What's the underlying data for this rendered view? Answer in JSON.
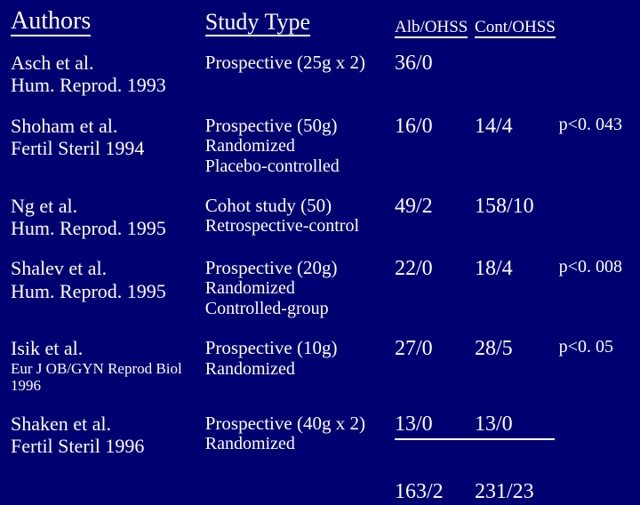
{
  "colors": {
    "background": "#000070",
    "text": "#ffffff",
    "rule": "#ffffff"
  },
  "typography": {
    "family": "Times New Roman",
    "header_large_pt": 28,
    "header_med_pt": 26,
    "header_small_pt": 19,
    "author_pt": 22,
    "study_pt": 21,
    "value_pt": 24,
    "pvalue_pt": 20
  },
  "headers": {
    "authors": "Authors",
    "study_type": "Study Type",
    "alb_ohss": "Alb/OHSS",
    "cont_ohss": "Cont/OHSS"
  },
  "rows": [
    {
      "author_line1": "Asch et al.",
      "author_line2": "Hum. Reprod. 1993",
      "study_line1": "Prospective (25g x 2)",
      "study_line2": "",
      "study_line3": "",
      "alb": "36/0",
      "cont": "",
      "p": ""
    },
    {
      "author_line1": "Shoham et al.",
      "author_line2": "Fertil Steril 1994",
      "study_line1": "Prospective (50g)",
      "study_line2": "Randomized",
      "study_line3": "Placebo-controlled",
      "alb": "16/0",
      "cont": "14/4",
      "p": "p<0. 043"
    },
    {
      "author_line1": "Ng et al.",
      "author_line2": "Hum. Reprod. 1995",
      "study_line1": "Cohot study  (50)",
      "study_line2": "Retrospective-control",
      "study_line3": "",
      "alb": "49/2",
      "cont": "158/10",
      "p": ""
    },
    {
      "author_line1": "Shalev et al.",
      "author_line2": "Hum. Reprod. 1995",
      "study_line1": "Prospective (20g)",
      "study_line2": "Randomized",
      "study_line3": "Controlled-group",
      "alb": "22/0",
      "cont": "18/4",
      "p": "p<0. 008"
    },
    {
      "author_line1": "Isik et al.",
      "author_line2": "Eur J OB/GYN Reprod Biol 1996",
      "author_line2_small": true,
      "study_line1": "Prospective (10g)",
      "study_line2": "Randomized",
      "study_line3": "",
      "alb": "27/0",
      "cont": "28/5",
      "p": "p<0. 05"
    },
    {
      "author_line1": "Shaken et al.",
      "author_line2": "Fertil Steril 1996",
      "study_line1": "Prospective (40g x 2)",
      "study_line2": "Randomized",
      "study_line3": "",
      "alb": "13/0",
      "cont": "13/0",
      "p": "",
      "underline_values": true
    }
  ],
  "totals": {
    "alb": "163/2",
    "cont": "231/23"
  }
}
